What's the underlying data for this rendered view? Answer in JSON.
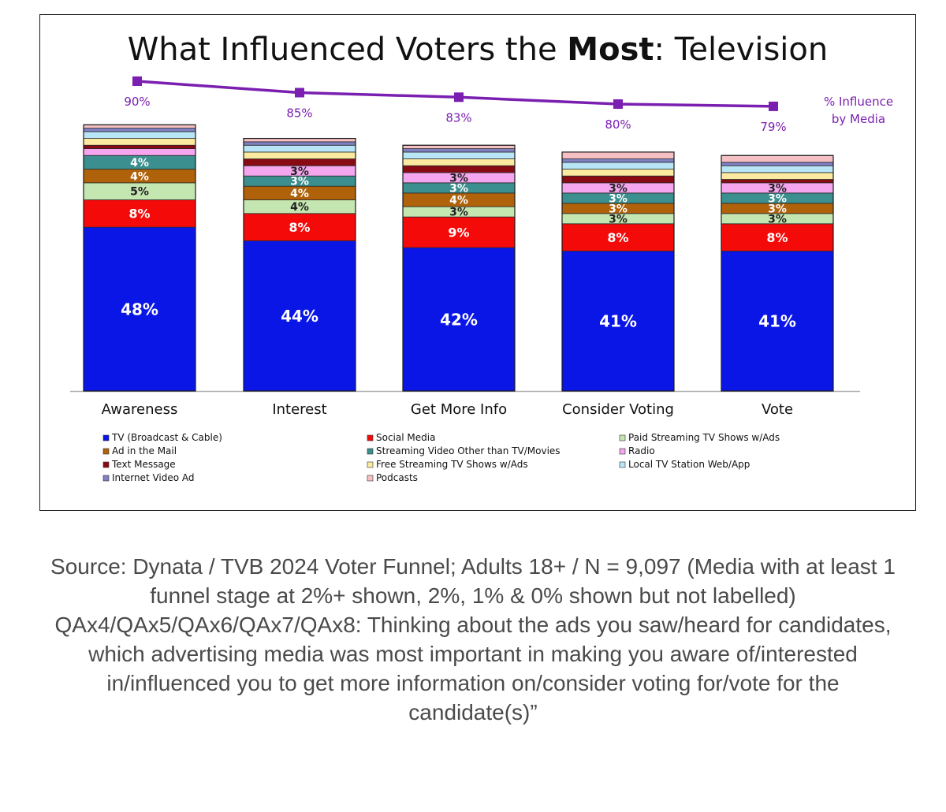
{
  "chart_data": {
    "type": "bar",
    "stacked": true,
    "title_parts": [
      "What Influenced Voters the ",
      "Most",
      ": Television"
    ],
    "categories": [
      "Awareness",
      "Interest",
      "Get More Info",
      "Consider Voting",
      "Vote"
    ],
    "series": [
      {
        "name": "TV (Broadcast & Cable)",
        "color": "#0a16e6",
        "values": [
          48,
          44,
          42,
          41,
          41
        ],
        "label_color": "#ffffff"
      },
      {
        "name": "Social Media",
        "color": "#f50a0a",
        "values": [
          8,
          8,
          9,
          8,
          8
        ],
        "label_color": "#ffffff"
      },
      {
        "name": "Paid Streaming TV Shows w/Ads",
        "color": "#c4e6b0",
        "values": [
          5,
          4,
          3,
          3,
          3
        ],
        "label_color": "#222222"
      },
      {
        "name": "Ad in the Mail",
        "color": "#b0620a",
        "values": [
          4,
          4,
          4,
          3,
          3
        ],
        "label_color": "#ffffff"
      },
      {
        "name": "Streaming Video Other than TV/Movies",
        "color": "#3b8f8f",
        "values": [
          4,
          3,
          3,
          3,
          3
        ],
        "label_color": "#ffffff"
      },
      {
        "name": "Radio",
        "color": "#f5a6ee",
        "values": [
          2,
          3,
          3,
          3,
          3
        ],
        "label_color": "#222222"
      },
      {
        "name": "Text Message",
        "color": "#8a0a14",
        "values": [
          1,
          2,
          2,
          2,
          1
        ],
        "label_color": "#ffffff"
      },
      {
        "name": "Free Streaming TV Shows w/Ads",
        "color": "#fbeaa0",
        "values": [
          2,
          2,
          2,
          2,
          2
        ],
        "label_color": "#222222"
      },
      {
        "name": "Local TV Station Web/App",
        "color": "#b8e6f7",
        "values": [
          2,
          2,
          2,
          2,
          2
        ],
        "label_color": "#222222"
      },
      {
        "name": "Internet Video Ad",
        "color": "#8080c4",
        "values": [
          1,
          1,
          1,
          1,
          1
        ],
        "label_color": "#ffffff"
      },
      {
        "name": "Podcasts",
        "color": "#f5c0c4",
        "values": [
          1,
          1,
          1,
          2,
          2
        ],
        "label_color": "#222222"
      }
    ],
    "line_series": {
      "name": "% Influence by Media",
      "legend_lines": [
        "% Influence",
        "by Media"
      ],
      "color": "#7a1fb0",
      "values": [
        90,
        85,
        83,
        80,
        79
      ],
      "labels": [
        "90%",
        "85%",
        "83%",
        "80%",
        "79%"
      ]
    },
    "label_threshold": 3,
    "ylim": [
      0,
      100
    ],
    "grid": false,
    "legend_position": "bottom"
  },
  "caption": "Source: Dynata / TVB 2024 Voter Funnel; Adults 18+ / N = 9,097 (Media with at least 1 funnel stage at 2%+ shown, 2%, 1% & 0% shown but not labelled) QAx4/QAx5/QAx6/QAx7/QAx8: Thinking about the ads you saw/heard for candidates, which advertising media was most important in making you aware of/interested in/influenced you to get more information on/consider voting for/vote for the candidate(s)”"
}
